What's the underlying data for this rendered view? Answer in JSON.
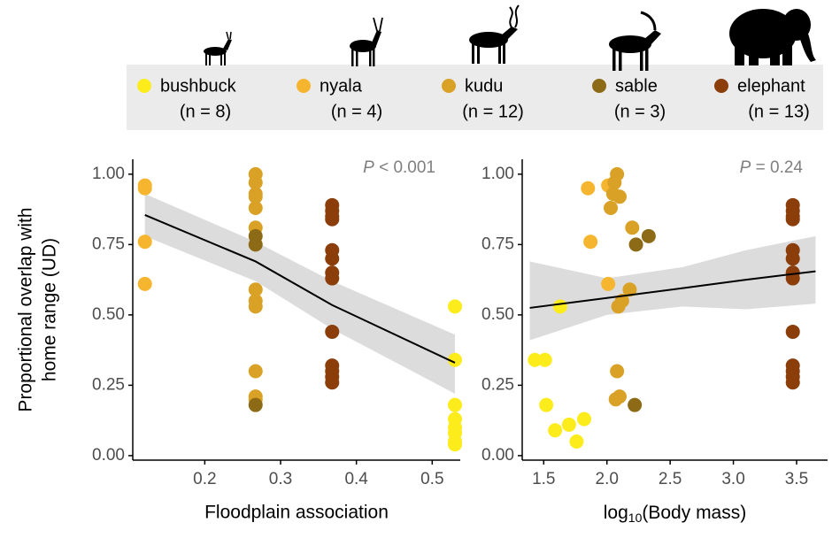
{
  "legend": {
    "counts": [
      "(n = 8)",
      "(n = 4)",
      "(n = 12)",
      "(n = 3)",
      "(n = 13)"
    ]
  },
  "y_label": [
    "Proportional overlap with",
    "home range (UD)"
  ],
  "chart_data": [
    {
      "type": "scatter",
      "x_label": "Floodplain association",
      "annotation": {
        "symbol": "P",
        "text": " < 0.001"
      },
      "xlim": [
        0.105,
        0.537
      ],
      "xticks": [
        0.2,
        0.3,
        0.4,
        0.5
      ],
      "ylim": [
        -0.016,
        1.053
      ],
      "yticks": [
        {
          "value": 0,
          "label": "0.00"
        },
        {
          "value": 0.25,
          "label": "0.25"
        },
        {
          "value": 0.5,
          "label": "0.50"
        },
        {
          "value": 0.75,
          "label": "0.75"
        },
        {
          "value": 1,
          "label": "1.00"
        }
      ],
      "series": [
        {
          "name": "bushbuck",
          "color": "#fcec1c",
          "x": [
            0.53,
            0.53,
            0.53,
            0.53,
            0.53,
            0.53,
            0.53,
            0.53
          ],
          "y": [
            0.53,
            0.34,
            0.18,
            0.13,
            0.1,
            0.08,
            0.05,
            0.04
          ]
        },
        {
          "name": "nyala",
          "color": "#f6b52e",
          "x": [
            0.121,
            0.121,
            0.121,
            0.121
          ],
          "y": [
            0.96,
            0.95,
            0.76,
            0.61
          ]
        },
        {
          "name": "kudu",
          "color": "#d9a126",
          "x": [
            0.267,
            0.267,
            0.267,
            0.267,
            0.267,
            0.267,
            0.267,
            0.267,
            0.267,
            0.267,
            0.267,
            0.267
          ],
          "y": [
            1.0,
            0.97,
            0.93,
            0.92,
            0.88,
            0.81,
            0.59,
            0.55,
            0.53,
            0.3,
            0.21,
            0.2
          ]
        },
        {
          "name": "sable",
          "color": "#8c6a16",
          "x": [
            0.267,
            0.267,
            0.267
          ],
          "y": [
            0.78,
            0.75,
            0.18
          ]
        },
        {
          "name": "elephant",
          "color": "#8b3e0a",
          "x": [
            0.368,
            0.368,
            0.368,
            0.368,
            0.368,
            0.368,
            0.368,
            0.368,
            0.368,
            0.368,
            0.368,
            0.368,
            0.368
          ],
          "y": [
            0.89,
            0.87,
            0.85,
            0.84,
            0.73,
            0.7,
            0.65,
            0.63,
            0.44,
            0.32,
            0.3,
            0.28,
            0.26
          ]
        }
      ],
      "fit": {
        "color": "#000000",
        "band_color": "#d6d6d6",
        "x": [
          0.121,
          0.267,
          0.368,
          0.53
        ],
        "y": [
          0.855,
          0.69,
          0.535,
          0.33
        ],
        "lower": [
          0.78,
          0.62,
          0.45,
          0.22
        ],
        "upper": [
          0.93,
          0.76,
          0.62,
          0.43
        ]
      }
    },
    {
      "type": "scatter",
      "x_label": {
        "base": "log",
        "sub": "10",
        "rest": "(Body mass)"
      },
      "annotation": {
        "symbol": "P",
        "text": " = 0.24"
      },
      "xlim": [
        1.33,
        3.745
      ],
      "xticks": [
        {
          "value": 1.5,
          "label": "1.5"
        },
        {
          "value": 2,
          "label": "2.0"
        },
        {
          "value": 2.5,
          "label": "2.5"
        },
        {
          "value": 3,
          "label": "3.0"
        },
        {
          "value": 3.5,
          "label": "3.5"
        }
      ],
      "ylim": [
        -0.016,
        1.053
      ],
      "yticks": [
        {
          "value": 0,
          "label": "0.00"
        },
        {
          "value": 0.25,
          "label": "0.25"
        },
        {
          "value": 0.5,
          "label": "0.50"
        },
        {
          "value": 0.75,
          "label": "0.75"
        },
        {
          "value": 1,
          "label": "1.00"
        }
      ],
      "series": [
        {
          "color": "#fcec1c",
          "x": [
            1.63,
            1.43,
            1.51,
            1.52,
            1.59,
            1.7,
            1.76,
            1.82
          ],
          "y": [
            0.53,
            0.34,
            0.34,
            0.18,
            0.09,
            0.11,
            0.05,
            0.13
          ]
        },
        {
          "color": "#f6b52e",
          "x": [
            2.01,
            1.85,
            1.87,
            2.01
          ],
          "y": [
            0.96,
            0.95,
            0.76,
            0.61
          ]
        },
        {
          "color": "#d9a126",
          "x": [
            2.08,
            2.06,
            2.05,
            2.1,
            2.03,
            2.2,
            2.18,
            2.12,
            2.09,
            2.08,
            2.1,
            2.07
          ],
          "y": [
            1.0,
            0.97,
            0.93,
            0.92,
            0.88,
            0.81,
            0.59,
            0.55,
            0.53,
            0.3,
            0.21,
            0.2
          ]
        },
        {
          "color": "#8c6a16",
          "x": [
            2.33,
            2.23,
            2.22
          ],
          "y": [
            0.78,
            0.75,
            0.18
          ]
        },
        {
          "color": "#8b3e0a",
          "x": [
            3.47,
            3.47,
            3.47,
            3.47,
            3.47,
            3.47,
            3.47,
            3.47,
            3.47,
            3.47,
            3.47,
            3.47,
            3.47
          ],
          "y": [
            0.89,
            0.87,
            0.85,
            0.84,
            0.73,
            0.7,
            0.65,
            0.63,
            0.44,
            0.32,
            0.3,
            0.28,
            0.26
          ]
        }
      ],
      "fit": {
        "color": "#000000",
        "band_color": "#d6d6d6",
        "x": [
          1.39,
          2.0,
          2.6,
          3.1,
          3.65
        ],
        "y": [
          0.525,
          0.56,
          0.595,
          0.625,
          0.655
        ],
        "lower": [
          0.41,
          0.5,
          0.53,
          0.52,
          0.54
        ],
        "upper": [
          0.69,
          0.63,
          0.67,
          0.73,
          0.78
        ]
      }
    }
  ]
}
